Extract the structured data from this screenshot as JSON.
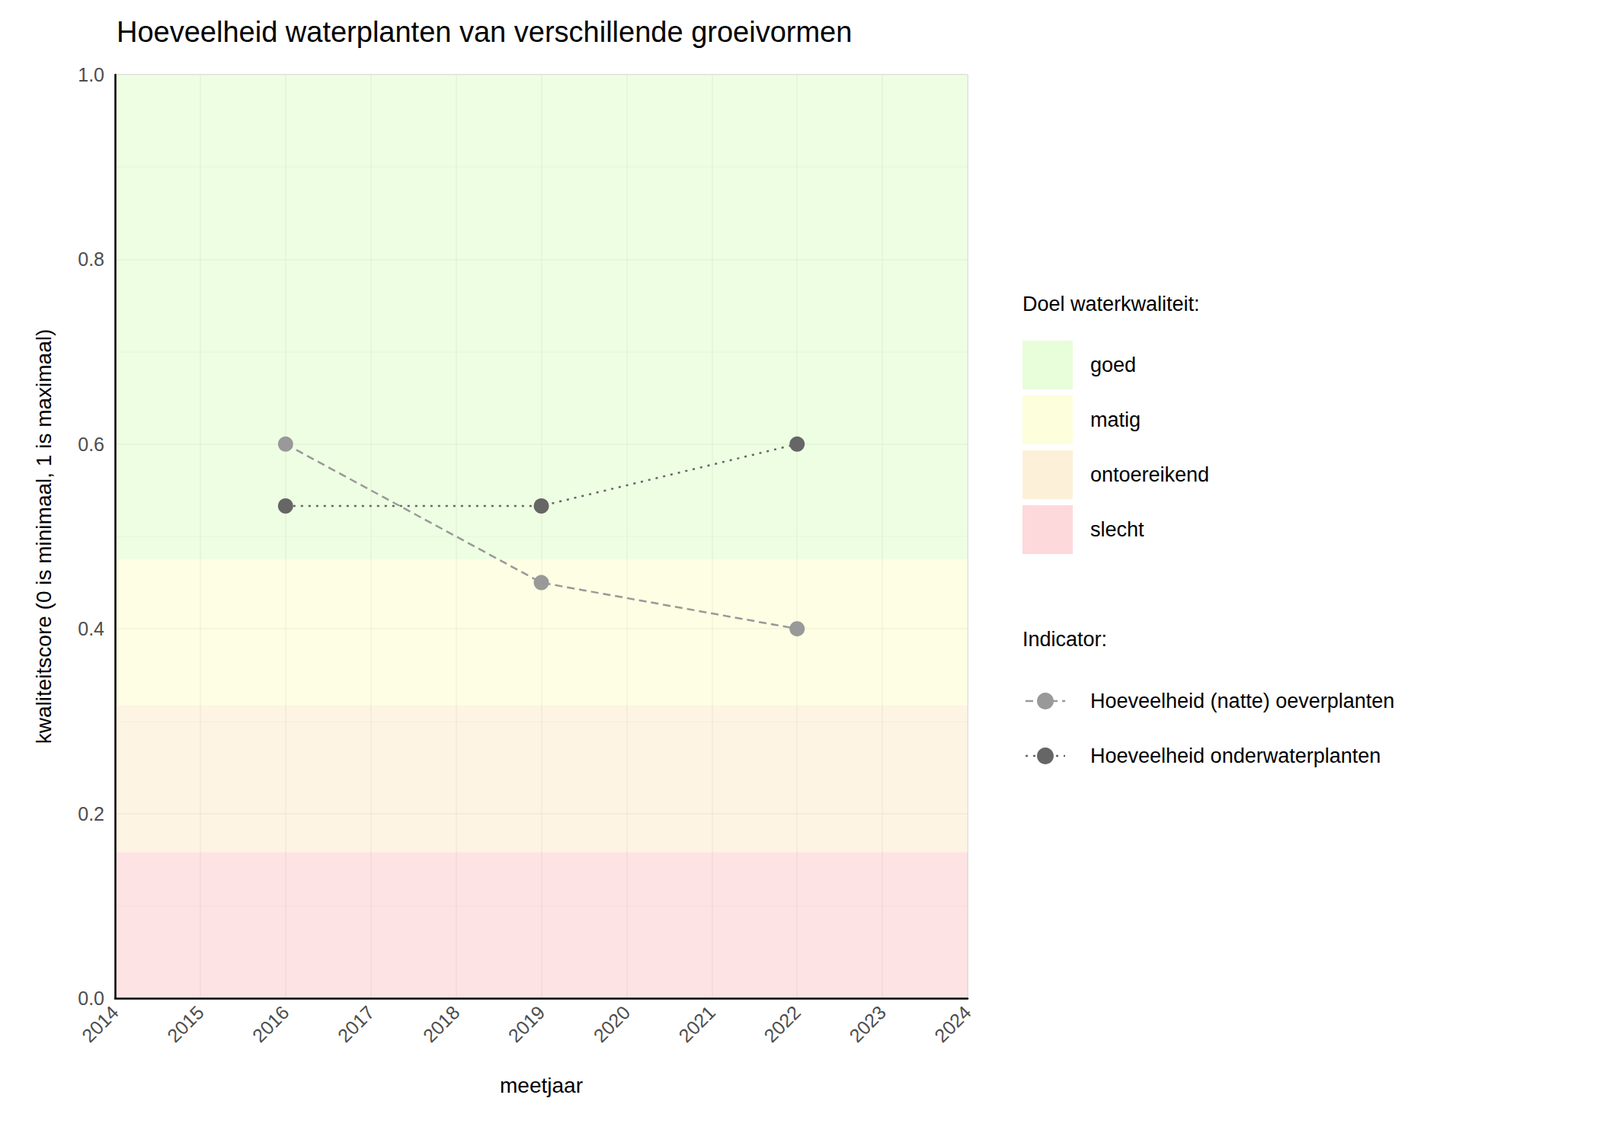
{
  "chart_data": {
    "type": "line",
    "title": "Hoeveelheid waterplanten van verschillende groeivormen",
    "x_label": "meetjaar",
    "y_label": "kwaliteitscore (0 is minimaal, 1 is maximaal)",
    "x": [
      2016,
      2019,
      2022
    ],
    "series": [
      {
        "name": "Hoeveelheid (natte) oeverplanten",
        "color": "#999999",
        "line_style": "dashed",
        "marker": "circle",
        "values": [
          0.6,
          0.45,
          0.4
        ]
      },
      {
        "name": "Hoeveelheid onderwaterplanten",
        "color": "#666666",
        "line_style": "dotted",
        "marker": "circle",
        "values": [
          0.533,
          0.533,
          0.6
        ]
      }
    ],
    "xlim": [
      2014,
      2024
    ],
    "xticks": [
      2014,
      2015,
      2016,
      2017,
      2018,
      2019,
      2020,
      2021,
      2022,
      2023,
      2024
    ],
    "ylim": [
      0,
      1
    ],
    "yticks": [
      {
        "value": 0,
        "label": "0.0"
      },
      0.2,
      0.4,
      0.6,
      0.8,
      {
        "value": 1,
        "label": "1.0"
      }
    ],
    "grid": true,
    "bands_title": "Doel waterkwaliteit:",
    "bands": [
      {
        "name": "goed",
        "from": 0.475,
        "to": 1,
        "color": "#e8fdd9"
      },
      {
        "name": "matig",
        "from": 0.317,
        "to": 0.475,
        "color": "#fdfedb"
      },
      {
        "name": "ontoereikend",
        "from": 0.158,
        "to": 0.317,
        "color": "#fdf0d9"
      },
      {
        "name": "slecht",
        "from": 0,
        "to": 0.158,
        "color": "#fdd9db"
      }
    ],
    "legend_title": "Indicator:",
    "legend": "right"
  }
}
